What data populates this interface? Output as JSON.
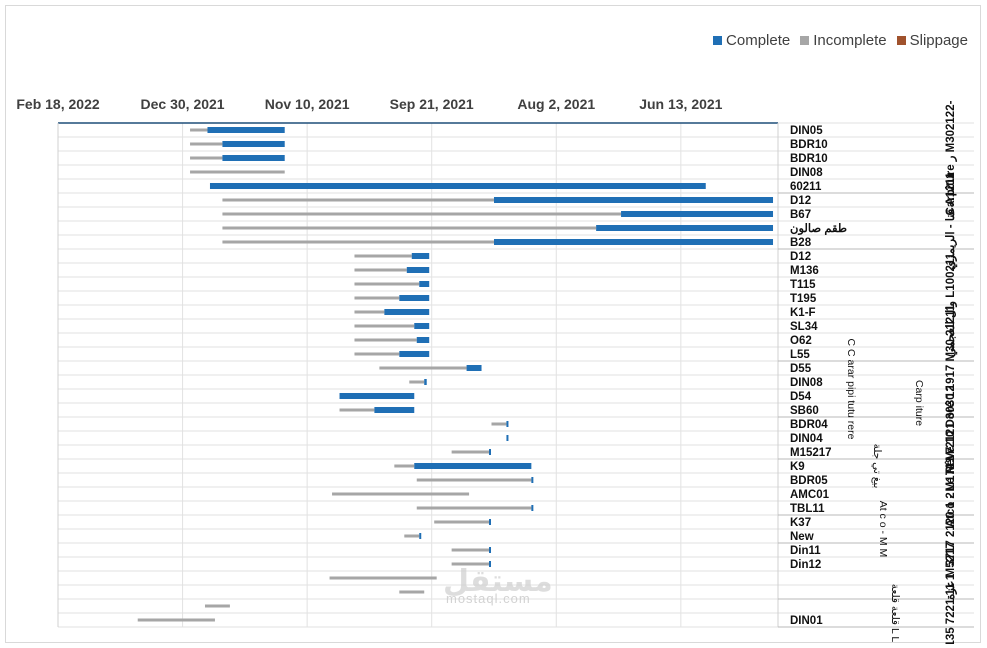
{
  "legend": {
    "complete": "Complete",
    "incomplete": "Incomplete",
    "slippage": "Slippage"
  },
  "colors": {
    "complete": "#1f6fb5",
    "incomplete": "#a6a6a6",
    "slippage": "#a0522d",
    "faint": "#e6e6e6"
  },
  "watermark": {
    "arabic": "مستقل",
    "latin": "mostaql.com"
  },
  "chart_data": {
    "type": "gantt",
    "x_axis": {
      "reversed": true,
      "position": "top",
      "min": "2021-05-05",
      "max": "2022-02-18"
    },
    "x_ticks": [
      "Feb 18, 2022",
      "Dec 30, 2021",
      "Nov 10, 2021",
      "Sep 21, 2021",
      "Aug 2, 2021",
      "Jun 13, 2021"
    ],
    "rows": [
      {
        "label": "DIN05",
        "start": "2021-11-19",
        "complete_end": "2021-12-20",
        "end": "2021-12-27"
      },
      {
        "label": "BDR10",
        "start": "2021-11-19",
        "complete_end": "2021-12-14",
        "end": "2021-12-27"
      },
      {
        "label": "BDR10",
        "start": "2021-11-19",
        "complete_end": "2021-12-14",
        "end": "2021-12-27"
      },
      {
        "label": "DIN08",
        "start": "2021-11-19",
        "end": "2021-12-27"
      },
      {
        "label": "60211",
        "start": "2021-06-03",
        "complete_end": "2021-12-19",
        "end": "2021-12-19"
      },
      {
        "label": "D12",
        "start": "2021-05-07",
        "complete_end": "2021-08-27",
        "end": "2021-12-14"
      },
      {
        "label": "B67",
        "start": "2021-05-07",
        "complete_end": "2021-07-07",
        "end": "2021-12-14"
      },
      {
        "label": "طقم صالون",
        "start": "2021-05-07",
        "complete_end": "2021-07-17",
        "end": "2021-12-14"
      },
      {
        "label": "B28",
        "start": "2021-05-07",
        "complete_end": "2021-08-27",
        "end": "2021-12-14"
      },
      {
        "label": "D12",
        "start": "2021-09-22",
        "complete_end": "2021-09-29",
        "end": "2021-10-22"
      },
      {
        "label": "M136",
        "start": "2021-09-22",
        "complete_end": "2021-10-01",
        "end": "2021-10-22"
      },
      {
        "label": "T115",
        "start": "2021-09-22",
        "complete_end": "2021-09-26",
        "end": "2021-10-22"
      },
      {
        "label": "T195",
        "start": "2021-09-22",
        "complete_end": "2021-10-04",
        "end": "2021-10-22"
      },
      {
        "label": "K1-F",
        "start": "2021-09-22",
        "complete_end": "2021-10-10",
        "end": "2021-10-22"
      },
      {
        "label": "SL34",
        "start": "2021-09-22",
        "complete_end": "2021-09-28",
        "end": "2021-10-22"
      },
      {
        "label": "O62",
        "start": "2021-09-22",
        "complete_end": "2021-09-27",
        "end": "2021-10-22"
      },
      {
        "label": "L55",
        "start": "2021-09-22",
        "complete_end": "2021-10-04",
        "end": "2021-10-22"
      },
      {
        "label": "D55",
        "start": "2021-09-01",
        "complete_end": "2021-09-07",
        "end": "2021-10-12"
      },
      {
        "label": "DIN08",
        "start": "2021-09-23",
        "complete_end": "2021-09-24",
        "end": "2021-09-30"
      },
      {
        "label": "D54",
        "start": "2021-09-28",
        "complete_end": "2021-10-28",
        "end": "2021-10-28"
      },
      {
        "label": "SB60",
        "start": "2021-09-28",
        "complete_end": "2021-10-14",
        "end": "2021-10-28"
      },
      {
        "label": "BDR04",
        "start": "2021-08-22",
        "complete_end": "2021-08-22",
        "end": "2021-08-28"
      },
      {
        "label": "DIN04",
        "start": "2021-08-22",
        "complete_end": "2021-08-22",
        "end": "2021-08-22"
      },
      {
        "label": "M15217",
        "start": "2021-08-29",
        "complete_end": "2021-08-29",
        "end": "2021-09-13"
      },
      {
        "label": "K9",
        "start": "2021-08-12",
        "complete_end": "2021-09-28",
        "end": "2021-10-06"
      },
      {
        "label": "BDR05",
        "start": "2021-08-12",
        "complete_end": "2021-08-12",
        "end": "2021-09-27"
      },
      {
        "label": "AMC01",
        "start": "2021-09-06",
        "end": "2021-10-31"
      },
      {
        "label": "TBL11",
        "start": "2021-08-12",
        "complete_end": "2021-08-12",
        "end": "2021-09-27"
      },
      {
        "label": "K37",
        "start": "2021-08-29",
        "complete_end": "2021-08-29",
        "end": "2021-09-20"
      },
      {
        "label": "New",
        "start": "2021-09-26",
        "complete_end": "2021-09-26",
        "end": "2021-10-02"
      },
      {
        "label": "Din11",
        "start": "2021-08-29",
        "complete_end": "2021-08-29",
        "end": "2021-09-13"
      },
      {
        "label": "Din12",
        "start": "2021-08-29",
        "complete_end": "2021-08-29",
        "end": "2021-09-13"
      },
      {
        "label": "",
        "start": "2021-09-19",
        "end": "2021-11-01"
      },
      {
        "label": "",
        "start": "2021-09-24",
        "end": "2021-10-04"
      },
      {
        "label": "",
        "start": "2021-12-11",
        "end": "2021-12-21"
      },
      {
        "label": "DIN01",
        "start": "2021-12-17",
        "end": "2022-01-17"
      }
    ],
    "groups": [
      {
        "label": "Carpiture ر M302122-",
        "rows": [
          0,
          4
        ]
      },
      {
        "label": "قنا - الريمزي A1211",
        "rows": [
          5,
          8
        ]
      },
      {
        "label": "وال العجمي L100211",
        "rows": [
          9,
          16
        ]
      },
      {
        "label": "M M 2121 3030 1917 M30 21211",
        "rows": [
          17,
          20
        ]
      },
      {
        "label": "Le Rêve 10 Doré 12",
        "rows": [
          21,
          23
        ]
      },
      {
        "label": "Atco - M1721 7",
        "rows": [
          24,
          27
        ]
      },
      {
        "label": "3717 2120 1 2",
        "rows": [
          28,
          29
        ]
      },
      {
        "label": "عزة M5217",
        "rows": [
          30,
          33
        ]
      },
      {
        "label": "1135 7221 11 1",
        "rows": [
          34,
          35
        ]
      }
    ],
    "extra_columns": [
      {
        "label": "C C arar pipi tutu rere",
        "rows": [
          17,
          20
        ]
      },
      {
        "label": "Carp iture",
        "rows": [
          19,
          20
        ]
      },
      {
        "label": "بيغ تي جلة",
        "rows": [
          24,
          24
        ]
      },
      {
        "label": "At c o - M M",
        "rows": [
          28,
          29
        ]
      },
      {
        "label": "قلعة قلعة L L",
        "rows": [
          34,
          35
        ]
      }
    ]
  }
}
